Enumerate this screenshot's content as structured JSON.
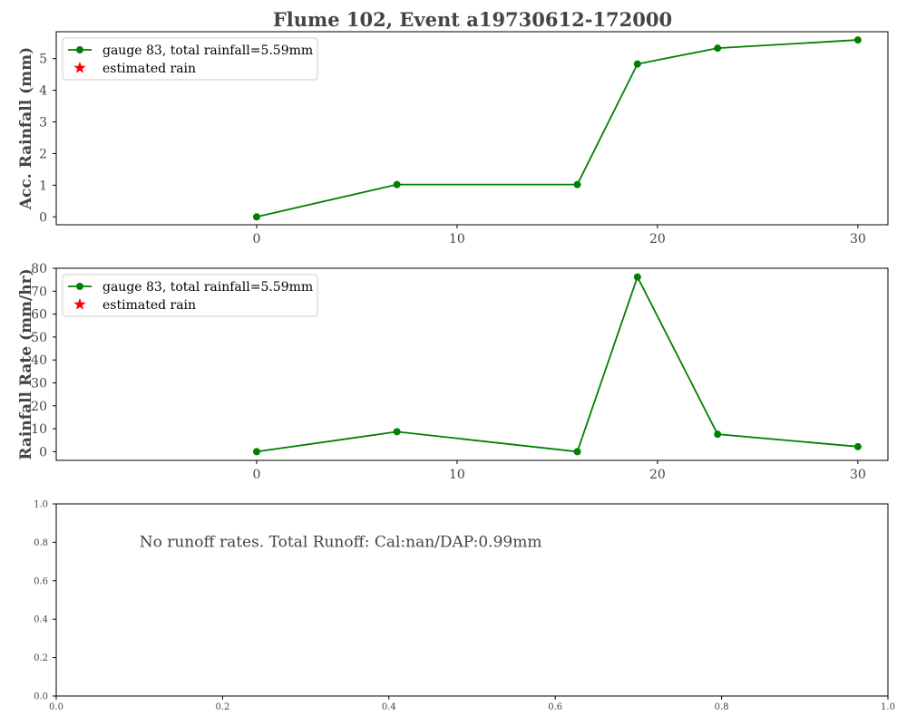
{
  "title": "Flume 102, Event a19730612-172000",
  "colors": {
    "series": "#008000",
    "estimated": "#ff0000",
    "text": "#444444",
    "axis": "#000000"
  },
  "chart_data": [
    {
      "type": "line",
      "ylabel": "Acc. Rainfall (mm)",
      "xlim": [
        -10,
        31.5
      ],
      "ylim": [
        -0.25,
        5.85
      ],
      "xticks": [
        0,
        10,
        20,
        30
      ],
      "yticks": [
        0,
        1,
        2,
        3,
        4,
        5
      ],
      "grid": false,
      "legend_position": "top-left",
      "series": [
        {
          "name": "gauge 83, total rainfall=5.59mm",
          "marker": "circle",
          "x": [
            0,
            7,
            16,
            19,
            23,
            30
          ],
          "y": [
            0.0,
            1.02,
            1.02,
            4.83,
            5.33,
            5.59
          ]
        },
        {
          "name": "estimated rain",
          "marker": "star",
          "x": [],
          "y": []
        }
      ]
    },
    {
      "type": "line",
      "ylabel": "Rainfall Rate (mm/hr)",
      "xlim": [
        -10,
        31.5
      ],
      "ylim": [
        -3.8,
        80
      ],
      "xticks": [
        0,
        10,
        20,
        30
      ],
      "yticks": [
        0,
        10,
        20,
        30,
        40,
        50,
        60,
        70,
        80
      ],
      "grid": false,
      "legend_position": "top-left",
      "series": [
        {
          "name": "gauge 83, total rainfall=5.59mm",
          "marker": "circle",
          "x": [
            0,
            7,
            16,
            19,
            23,
            30
          ],
          "y": [
            0.0,
            8.7,
            0.0,
            76.2,
            7.6,
            2.2
          ]
        },
        {
          "name": "estimated rain",
          "marker": "star",
          "x": [],
          "y": []
        }
      ]
    },
    {
      "type": "line",
      "xlim": [
        0,
        1
      ],
      "ylim": [
        0,
        1
      ],
      "xticks": [
        "0.0",
        "0.2",
        "0.4",
        "0.6",
        "0.8",
        "1.0"
      ],
      "yticks": [
        "0.0",
        "0.2",
        "0.4",
        "0.6",
        "0.8",
        "1.0"
      ],
      "grid": false,
      "annotation": "No runoff rates. Total Runoff: Cal:nan/DAP:0.99mm",
      "series": []
    }
  ]
}
